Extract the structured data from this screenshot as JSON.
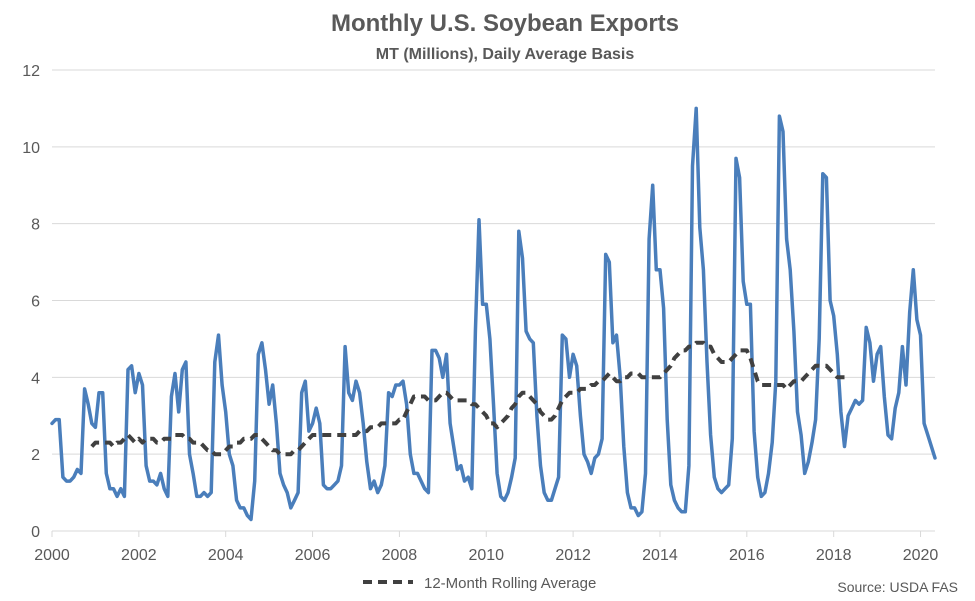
{
  "chart_data": {
    "type": "line",
    "title": "Monthly U.S. Soybean Exports",
    "subtitle": "MT (Millions), Daily Average Basis",
    "source": "Source: USDA FAS",
    "ylim": [
      0,
      12
    ],
    "y_ticks": [
      "0",
      "2",
      "4",
      "6",
      "8",
      "10",
      "12"
    ],
    "x_ticks": [
      "2000",
      "2002",
      "2004",
      "2006",
      "2008",
      "2010",
      "2012",
      "2014",
      "2016",
      "2018",
      "2020"
    ],
    "x_range": [
      "2000-01",
      "2020-05"
    ],
    "grid": "horizontal",
    "legend_position": "bottom",
    "colors": {
      "monthly": "#4a7ebb",
      "rolling": "#404040",
      "grid": "#d9d9d9",
      "text": "#595959"
    },
    "series": [
      {
        "key": "monthly",
        "start": "2000-01",
        "values": [
          2.8,
          2.9,
          2.9,
          1.4,
          1.3,
          1.3,
          1.4,
          1.6,
          1.5,
          3.7,
          3.3,
          2.8,
          2.7,
          3.6,
          3.6,
          1.5,
          1.1,
          1.1,
          0.9,
          1.1,
          0.9,
          4.2,
          4.3,
          3.6,
          4.1,
          3.8,
          1.7,
          1.3,
          1.3,
          1.2,
          1.5,
          1.1,
          0.9,
          3.5,
          4.1,
          3.1,
          4.2,
          4.4,
          2.0,
          1.5,
          0.9,
          0.9,
          1.0,
          0.9,
          1.0,
          4.4,
          5.1,
          3.8,
          3.1,
          2.0,
          1.7,
          0.8,
          0.6,
          0.6,
          0.4,
          0.3,
          1.3,
          4.6,
          4.9,
          4.2,
          3.3,
          3.8,
          2.8,
          1.5,
          1.2,
          1.0,
          0.6,
          0.8,
          1.0,
          3.6,
          3.9,
          2.6,
          2.8,
          3.2,
          2.8,
          1.2,
          1.1,
          1.1,
          1.2,
          1.3,
          1.7,
          4.8,
          3.6,
          3.4,
          3.9,
          3.6,
          2.8,
          1.8,
          1.1,
          1.3,
          1.0,
          1.2,
          1.7,
          3.6,
          3.5,
          3.8,
          3.8,
          3.9,
          3.3,
          2.0,
          1.5,
          1.5,
          1.3,
          1.1,
          1.0,
          4.7,
          4.7,
          4.5,
          4.0,
          4.6,
          2.8,
          2.2,
          1.6,
          1.7,
          1.3,
          1.4,
          1.1,
          5.2,
          8.1,
          5.9,
          5.9,
          5.0,
          3.3,
          1.5,
          0.9,
          0.8,
          1.0,
          1.4,
          1.9,
          7.8,
          7.1,
          5.2,
          5.0,
          4.9,
          3.0,
          1.7,
          1.0,
          0.8,
          0.8,
          1.1,
          1.4,
          5.1,
          5.0,
          4.0,
          4.6,
          4.3,
          3.0,
          2.0,
          1.8,
          1.5,
          1.9,
          2.0,
          2.4,
          7.2,
          7.0,
          4.9,
          5.1,
          4.0,
          2.2,
          1.0,
          0.6,
          0.6,
          0.4,
          0.5,
          1.5,
          7.6,
          9.0,
          6.8,
          6.8,
          5.8,
          2.9,
          1.2,
          0.8,
          0.6,
          0.5,
          0.5,
          1.7,
          9.5,
          11.0,
          7.9,
          6.8,
          4.4,
          2.5,
          1.4,
          1.1,
          1.0,
          1.1,
          1.2,
          2.4,
          9.7,
          9.2,
          6.5,
          5.9,
          5.9,
          2.6,
          1.4,
          0.9,
          1.0,
          1.5,
          2.3,
          3.9,
          10.8,
          10.4,
          7.6,
          6.8,
          5.2,
          3.1,
          2.5,
          1.5,
          1.8,
          2.3,
          2.9,
          5.0,
          9.3,
          9.2,
          6.0,
          5.6,
          4.6,
          3.1,
          2.2,
          3.0,
          3.2,
          3.4,
          3.3,
          3.4,
          5.3,
          4.9,
          3.9,
          4.6,
          4.8,
          3.5,
          2.5,
          2.4,
          3.2,
          3.6,
          4.8,
          3.8,
          5.7,
          6.8,
          5.5,
          5.1,
          2.8,
          2.5,
          2.2,
          1.9
        ]
      },
      {
        "key": "rolling",
        "name": "12-Month Rolling Average",
        "start": "2000-12",
        "values": [
          2.2,
          2.3,
          2.3,
          2.3,
          2.3,
          2.3,
          2.2,
          2.3,
          2.3,
          2.4,
          2.5,
          2.4,
          2.3,
          2.4,
          2.3,
          2.4,
          2.4,
          2.4,
          2.3,
          2.3,
          2.4,
          2.4,
          2.4,
          2.5,
          2.5,
          2.5,
          2.4,
          2.4,
          2.3,
          2.3,
          2.3,
          2.2,
          2.1,
          2.1,
          2.0,
          2.0,
          2.0,
          2.1,
          2.2,
          2.2,
          2.3,
          2.3,
          2.4,
          2.4,
          2.4,
          2.5,
          2.5,
          2.4,
          2.3,
          2.2,
          2.1,
          2.1,
          2.0,
          2.0,
          2.0,
          2.0,
          2.1,
          2.1,
          2.2,
          2.3,
          2.4,
          2.5,
          2.5,
          2.5,
          2.5,
          2.5,
          2.5,
          2.5,
          2.5,
          2.5,
          2.5,
          2.5,
          2.5,
          2.5,
          2.6,
          2.6,
          2.6,
          2.7,
          2.7,
          2.7,
          2.8,
          2.8,
          2.8,
          2.8,
          2.8,
          2.9,
          2.9,
          3.1,
          3.3,
          3.5,
          3.5,
          3.5,
          3.5,
          3.4,
          3.4,
          3.4,
          3.5,
          3.6,
          3.6,
          3.5,
          3.4,
          3.4,
          3.4,
          3.4,
          3.4,
          3.3,
          3.3,
          3.2,
          3.1,
          3.0,
          2.8,
          2.8,
          2.7,
          2.8,
          2.9,
          3.0,
          3.2,
          3.3,
          3.5,
          3.6,
          3.6,
          3.5,
          3.4,
          3.3,
          3.1,
          3.0,
          2.9,
          2.9,
          3.0,
          3.2,
          3.4,
          3.5,
          3.6,
          3.6,
          3.6,
          3.7,
          3.7,
          3.7,
          3.8,
          3.8,
          3.9,
          3.9,
          4.0,
          4.1,
          4.0,
          3.9,
          3.9,
          4.0,
          4.0,
          4.1,
          4.1,
          4.1,
          4.0,
          4.0,
          4.0,
          4.0,
          4.0,
          4.0,
          4.1,
          4.2,
          4.3,
          4.5,
          4.6,
          4.7,
          4.7,
          4.8,
          4.8,
          4.9,
          4.9,
          4.9,
          4.8,
          4.8,
          4.6,
          4.5,
          4.4,
          4.4,
          4.4,
          4.5,
          4.6,
          4.7,
          4.7,
          4.7,
          4.5,
          4.2,
          3.9,
          3.8,
          3.8,
          3.8,
          3.8,
          3.8,
          3.8,
          3.8,
          3.7,
          3.8,
          3.9,
          3.9,
          3.9,
          4.0,
          4.1,
          4.2,
          4.3,
          4.3,
          4.3,
          4.3,
          4.2,
          4.1,
          4.0,
          4.0,
          4.0
        ]
      }
    ]
  }
}
